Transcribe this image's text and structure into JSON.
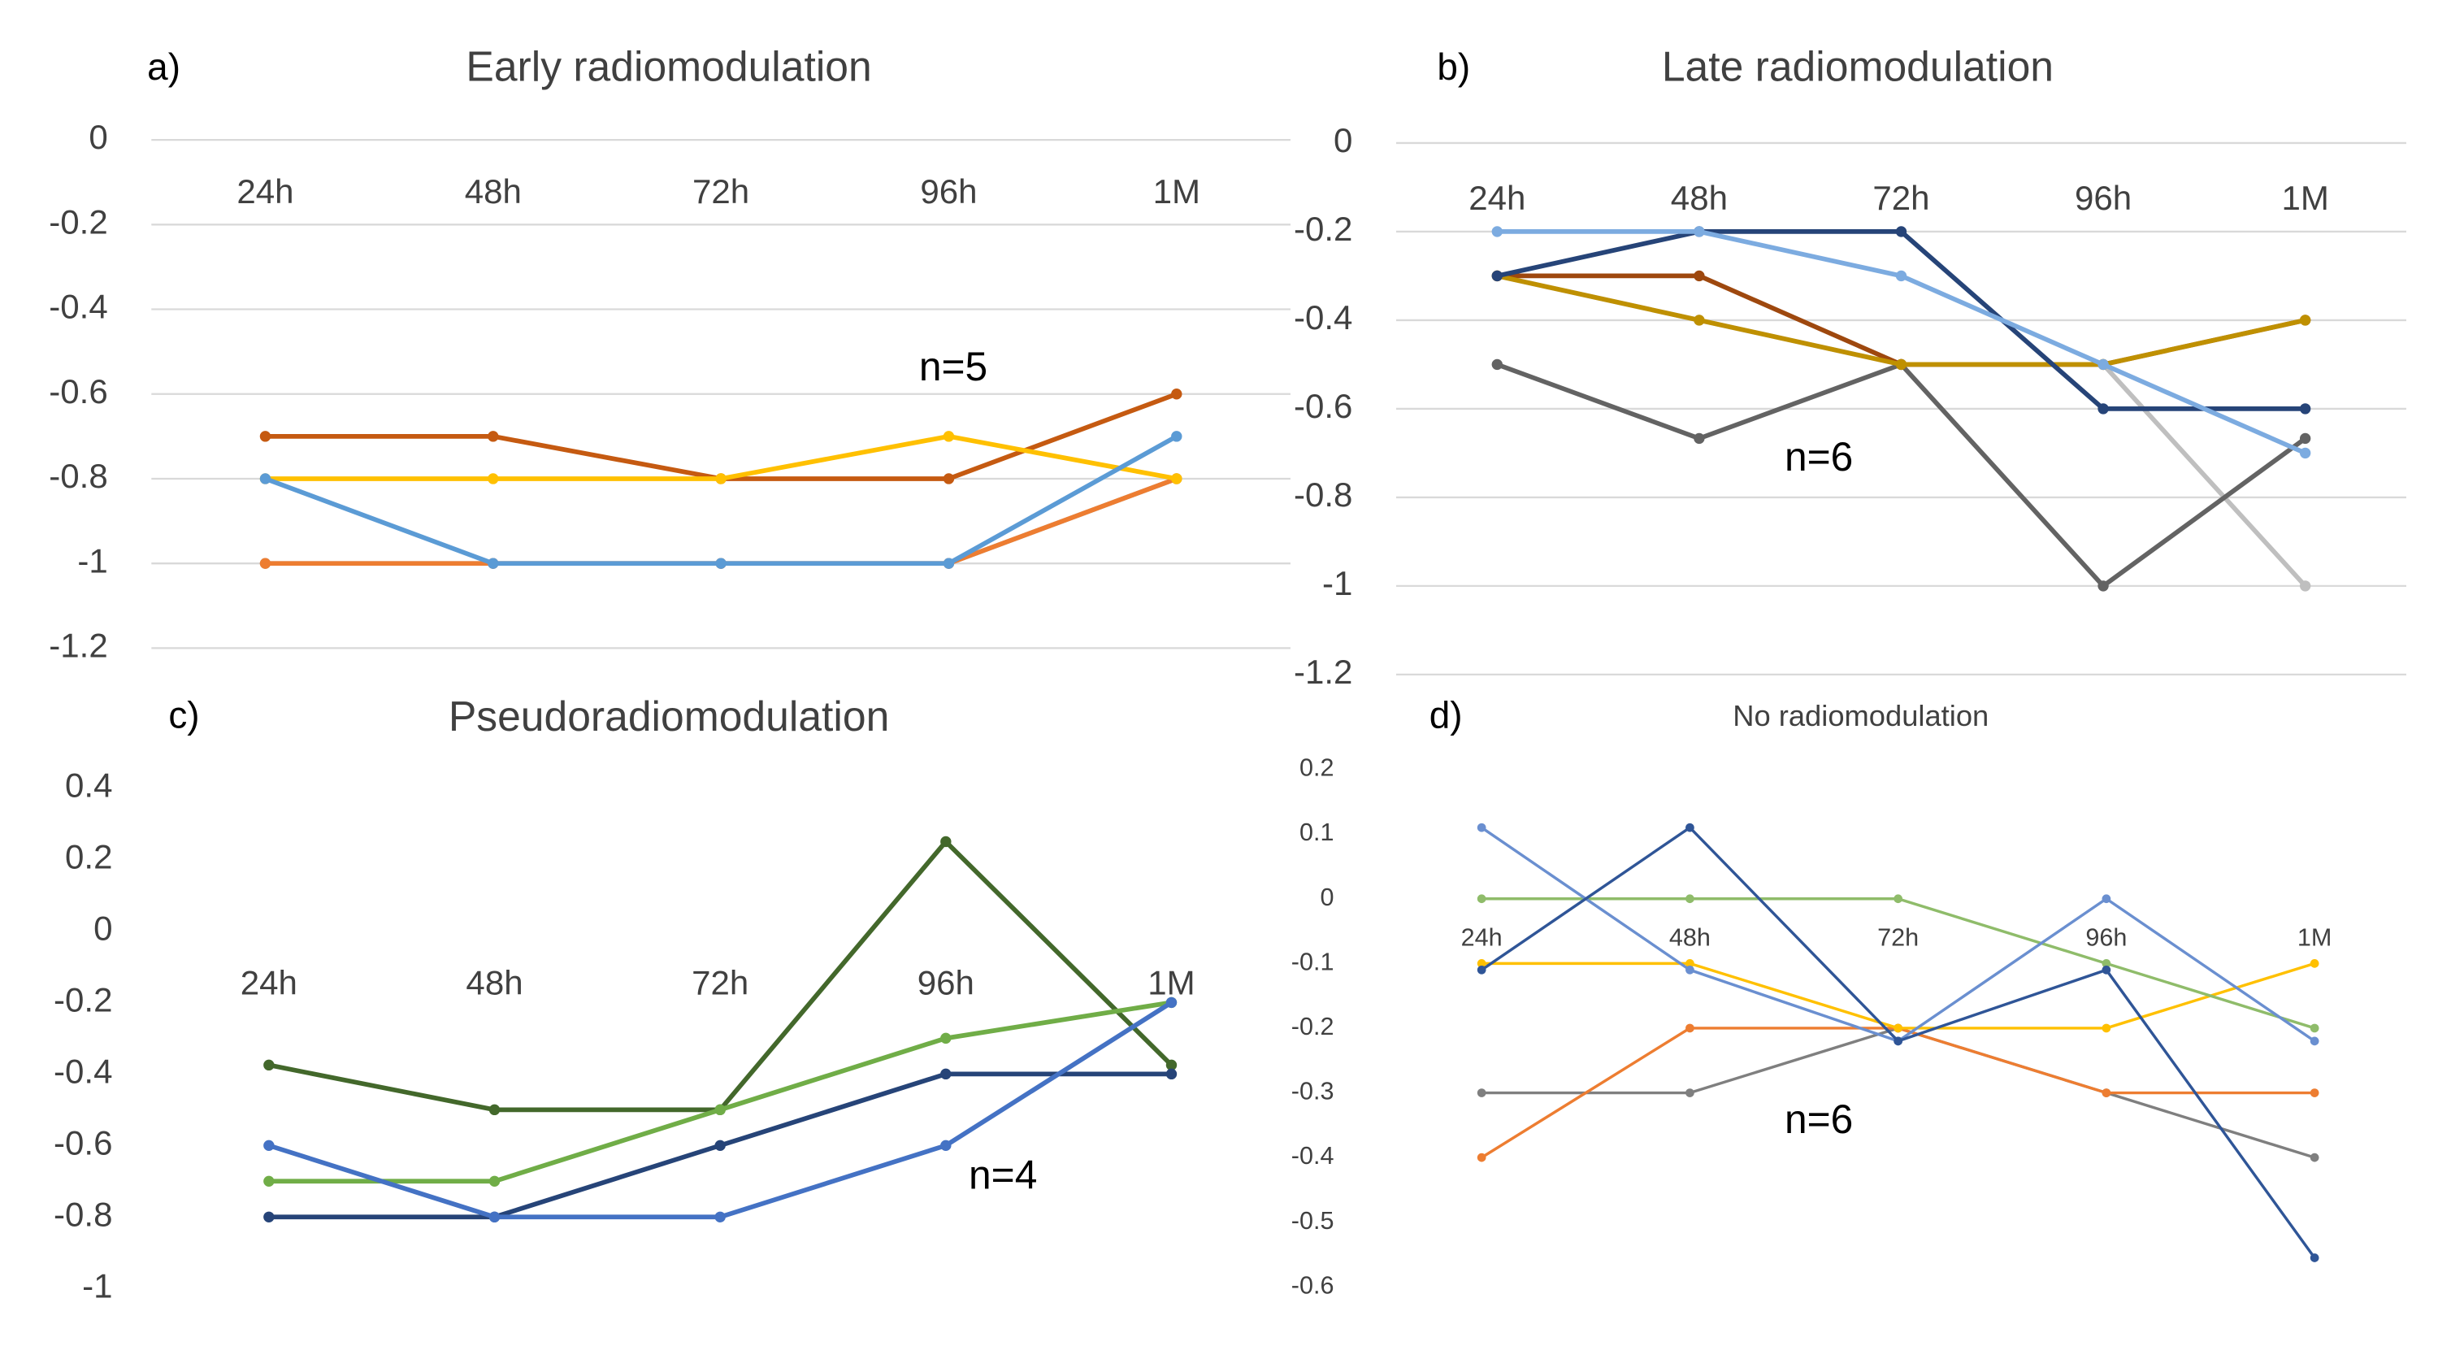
{
  "chart_data": [
    {
      "type": "line",
      "panel": "a)",
      "title": "Early radiomodulation",
      "annotation": "n=5",
      "categories": [
        "24h",
        "48h",
        "72h",
        "96h",
        "1M"
      ],
      "ylim": [
        -1.2,
        0
      ],
      "yticks": [
        0,
        -0.2,
        -0.4,
        -0.6,
        -0.8,
        -1,
        -1.2
      ],
      "grid": true,
      "series": [
        {
          "color": "#a5a5a5",
          "values": [
            -1,
            -1,
            -1,
            -1,
            -0.8
          ]
        },
        {
          "color": "#ed7d31",
          "values": [
            -1,
            -1,
            -1,
            -1,
            -0.8
          ]
        },
        {
          "color": "#c55a11",
          "values": [
            -0.7,
            -0.7,
            -0.8,
            -0.8,
            -0.6
          ]
        },
        {
          "color": "#ffc000",
          "values": [
            -0.8,
            -0.8,
            -0.8,
            -0.7,
            -0.8
          ]
        },
        {
          "color": "#5b9bd5",
          "values": [
            -0.8,
            -1,
            -1,
            -1,
            -0.7
          ]
        }
      ]
    },
    {
      "type": "line",
      "panel": "b)",
      "title": "Late radiomodulation",
      "annotation": "n=6",
      "categories": [
        "24h",
        "48h",
        "72h",
        "96h",
        "1M"
      ],
      "ylim": [
        -1.2,
        0
      ],
      "yticks": [
        0,
        -0.2,
        -0.4,
        -0.6,
        -0.8,
        -1,
        -1.2
      ],
      "grid": true,
      "series": [
        {
          "color": "#bfbfbf",
          "values": [
            -0.3,
            -0.4,
            -0.5,
            -0.5,
            -1
          ]
        },
        {
          "color": "#636363",
          "values": [
            -0.5,
            -0.667,
            -0.5,
            -1,
            -0.667
          ]
        },
        {
          "color": "#9e480e",
          "values": [
            -0.3,
            -0.3,
            -0.5,
            -0.5,
            -0.4
          ]
        },
        {
          "color": "#bf9000",
          "values": [
            -0.3,
            -0.4,
            -0.5,
            -0.5,
            -0.4
          ]
        },
        {
          "color": "#264478",
          "values": [
            -0.3,
            -0.2,
            -0.2,
            -0.6,
            -0.6
          ]
        },
        {
          "color": "#7cabe0",
          "values": [
            -0.2,
            -0.2,
            -0.3,
            -0.5,
            -0.7
          ]
        }
      ]
    },
    {
      "type": "line",
      "panel": "c)",
      "title": "Pseudoradiomodulation",
      "annotation": "n=4",
      "categories": [
        "24h",
        "48h",
        "72h",
        "96h",
        "1M"
      ],
      "ylim": [
        -1,
        0.4
      ],
      "yticks": [
        0.4,
        0.2,
        0,
        -0.2,
        -0.4,
        -0.6,
        -0.8,
        -1
      ],
      "grid": false,
      "series": [
        {
          "color": "#43682b",
          "values": [
            -0.375,
            -0.5,
            -0.5,
            0.25,
            -0.375
          ]
        },
        {
          "color": "#70ad47",
          "values": [
            -0.7,
            -0.7,
            -0.5,
            -0.3,
            -0.2
          ]
        },
        {
          "color": "#264478",
          "values": [
            -0.8,
            -0.8,
            -0.6,
            -0.4,
            -0.4
          ]
        },
        {
          "color": "#4472c4",
          "values": [
            -0.6,
            -0.8,
            -0.8,
            -0.6,
            -0.2
          ]
        }
      ]
    },
    {
      "type": "line",
      "panel": "d)",
      "title": "No radiomodulation",
      "annotation": "n=6",
      "categories": [
        "24h",
        "48h",
        "72h",
        "96h",
        "1M"
      ],
      "ylim": [
        -0.6,
        0.2
      ],
      "yticks": [
        0.2,
        0.1,
        0,
        -0.1,
        -0.2,
        -0.3,
        -0.4,
        -0.5,
        -0.6
      ],
      "grid": false,
      "series": [
        {
          "color": "#7f7f7f",
          "values": [
            -0.3,
            -0.3,
            -0.2,
            -0.3,
            -0.4
          ]
        },
        {
          "color": "#ed7d31",
          "values": [
            -0.4,
            -0.2,
            -0.2,
            -0.3,
            -0.3
          ]
        },
        {
          "color": "#ffc000",
          "values": [
            -0.1,
            -0.1,
            -0.2,
            -0.2,
            -0.1
          ]
        },
        {
          "color": "#8fbc6a",
          "values": [
            0,
            0,
            0,
            -0.1,
            -0.2
          ]
        },
        {
          "color": "#6a8fd0",
          "values": [
            0.11,
            -0.11,
            -0.22,
            0,
            -0.22
          ]
        },
        {
          "color": "#2f5597",
          "values": [
            -0.11,
            0.11,
            -0.22,
            -0.11,
            -0.555
          ]
        }
      ]
    }
  ]
}
